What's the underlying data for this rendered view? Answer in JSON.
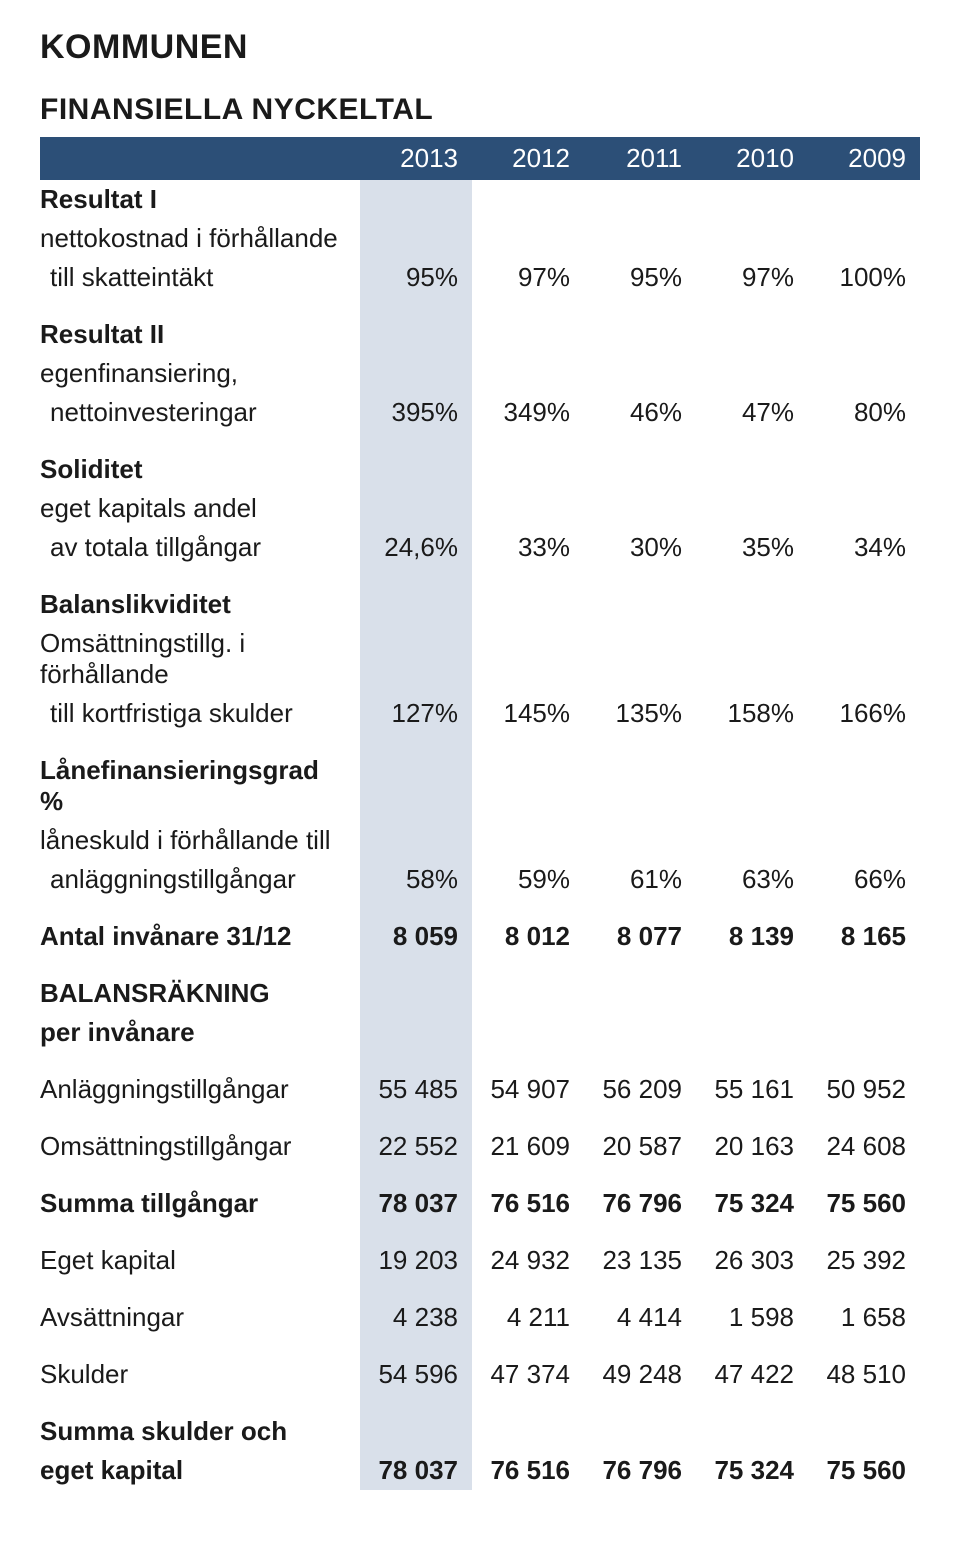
{
  "title": "KOMMUNEN",
  "section_title": "FINANSIELLA NYCKELTAL",
  "years": [
    "2013",
    "2012",
    "2011",
    "2010",
    "2009"
  ],
  "colors": {
    "header_bg": "#2c4f77",
    "header_fg": "#ffffff",
    "col2013_bg": "#d9e0ea",
    "text": "#1a1a1a",
    "page_bg": "#ffffff"
  },
  "rows": [
    {
      "type": "group",
      "label": "Resultat I"
    },
    {
      "type": "sub",
      "label": "nettokostnad i förhållande"
    },
    {
      "type": "data",
      "label": "till skatteintäkt",
      "indent": true,
      "values": [
        "95%",
        "97%",
        "95%",
        "97%",
        "100%"
      ]
    },
    {
      "type": "spacer"
    },
    {
      "type": "group",
      "label": "Resultat II"
    },
    {
      "type": "sub",
      "label": "egenfinansiering,"
    },
    {
      "type": "data",
      "label": "nettoinvesteringar",
      "indent": true,
      "values": [
        "395%",
        "349%",
        "46%",
        "47%",
        "80%"
      ]
    },
    {
      "type": "spacer"
    },
    {
      "type": "group",
      "label": "Soliditet"
    },
    {
      "type": "sub",
      "label": "eget kapitals andel"
    },
    {
      "type": "data",
      "label": "av totala tillgångar",
      "indent": true,
      "values": [
        "24,6%",
        "33%",
        "30%",
        "35%",
        "34%"
      ]
    },
    {
      "type": "spacer"
    },
    {
      "type": "group",
      "label": "Balanslikviditet"
    },
    {
      "type": "sub",
      "label": "Omsättningstillg. i förhållande"
    },
    {
      "type": "data",
      "label": "till kortfristiga skulder",
      "indent": true,
      "values": [
        "127%",
        "145%",
        "135%",
        "158%",
        "166%"
      ]
    },
    {
      "type": "spacer"
    },
    {
      "type": "group",
      "label": "Lånefinansieringsgrad %"
    },
    {
      "type": "sub",
      "label": "låneskuld i förhållande till"
    },
    {
      "type": "data",
      "label": "anläggningstillgångar",
      "indent": true,
      "values": [
        "58%",
        "59%",
        "61%",
        "63%",
        "66%"
      ]
    },
    {
      "type": "spacer"
    },
    {
      "type": "data",
      "label": "Antal invånare 31/12",
      "bold": true,
      "values": [
        "8 059",
        "8 012",
        "8 077",
        "8 139",
        "8 165"
      ]
    },
    {
      "type": "spacer"
    },
    {
      "type": "group",
      "label": "BALANSRÄKNING"
    },
    {
      "type": "group",
      "label": "per invånare"
    },
    {
      "type": "spacer"
    },
    {
      "type": "data",
      "label": "Anläggningstillgångar",
      "values": [
        "55 485",
        "54 907",
        "56 209",
        "55 161",
        "50 952"
      ]
    },
    {
      "type": "spacer"
    },
    {
      "type": "data",
      "label": "Omsättningstillgångar",
      "values": [
        "22 552",
        "21 609",
        "20 587",
        "20 163",
        "24 608"
      ]
    },
    {
      "type": "spacer"
    },
    {
      "type": "data",
      "label": "Summa tillgångar",
      "bold": true,
      "values": [
        "78 037",
        "76 516",
        "76 796",
        "75 324",
        "75 560"
      ]
    },
    {
      "type": "spacer"
    },
    {
      "type": "data",
      "label": "Eget kapital",
      "values": [
        "19 203",
        "24 932",
        "23 135",
        "26 303",
        "25 392"
      ]
    },
    {
      "type": "spacer"
    },
    {
      "type": "data",
      "label": "Avsättningar",
      "values": [
        "4 238",
        "4 211",
        "4 414",
        "1 598",
        "1 658"
      ]
    },
    {
      "type": "spacer"
    },
    {
      "type": "data",
      "label": "Skulder",
      "values": [
        "54 596",
        "47 374",
        "49 248",
        "47 422",
        "48 510"
      ]
    },
    {
      "type": "spacer"
    },
    {
      "type": "group",
      "label": "Summa skulder och"
    },
    {
      "type": "data",
      "label": "eget kapital",
      "bold": true,
      "values": [
        "78 037",
        "76 516",
        "76 796",
        "75 324",
        "75 560"
      ]
    }
  ]
}
